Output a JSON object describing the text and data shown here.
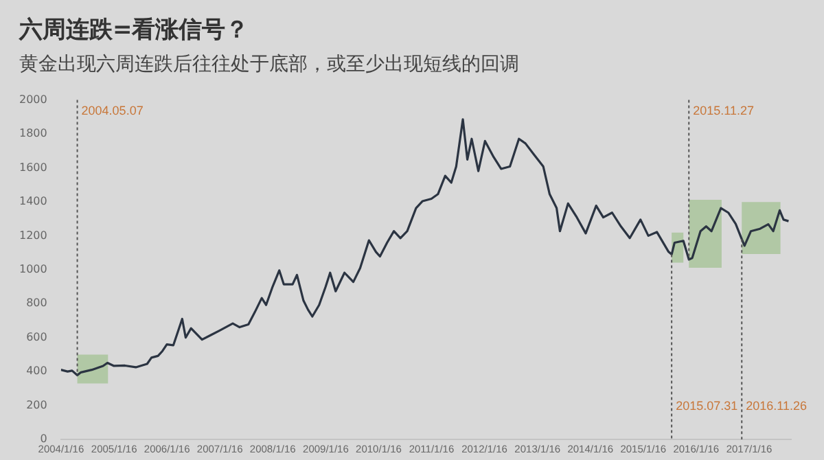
{
  "chart_data": {
    "type": "line",
    "title": "六周连跌=看涨信号？",
    "subtitle": "黄金出现六周连跌后往往处于底部，或至少出现短线的回调",
    "color": "#2b3442",
    "x": [
      "2004-01-15",
      "2004-03-01",
      "2004-04-01",
      "2004-05-07",
      "2004-06-01",
      "2004-08-15",
      "2004-11-01",
      "2004-12-01",
      "2005-01-15",
      "2005-04-01",
      "2005-06-15",
      "2005-09-01",
      "2005-10-01",
      "2005-11-15",
      "2005-12-15",
      "2006-01-15",
      "2006-03-01",
      "2006-05-01",
      "2006-05-25",
      "2006-07-01",
      "2006-09-15",
      "2006-11-15",
      "2007-01-15",
      "2007-04-15",
      "2007-06-01",
      "2007-08-01",
      "2007-09-15",
      "2007-11-01",
      "2007-12-01",
      "2008-01-15",
      "2008-03-01",
      "2008-04-01",
      "2008-06-01",
      "2008-07-01",
      "2008-08-15",
      "2008-09-15",
      "2008-10-15",
      "2008-12-01",
      "2009-01-15",
      "2009-02-15",
      "2009-03-25",
      "2009-05-25",
      "2009-07-25",
      "2009-09-10",
      "2009-11-10",
      "2009-12-28",
      "2010-01-25",
      "2010-03-15",
      "2010-05-01",
      "2010-06-15",
      "2010-08-01",
      "2010-10-01",
      "2010-11-15",
      "2011-01-15",
      "2011-03-01",
      "2011-04-20",
      "2011-06-01",
      "2011-07-05",
      "2011-08-20",
      "2011-09-20",
      "2011-10-20",
      "2011-12-05",
      "2012-01-20",
      "2012-03-20",
      "2012-05-10",
      "2012-07-10",
      "2012-09-10",
      "2012-10-25",
      "2012-12-25",
      "2013-02-25",
      "2013-04-10",
      "2013-05-28",
      "2013-06-20",
      "2013-08-15",
      "2013-10-15",
      "2013-12-15",
      "2014-02-25",
      "2014-04-15",
      "2014-06-15",
      "2014-08-15",
      "2014-10-15",
      "2014-12-28",
      "2015-02-20",
      "2015-04-20",
      "2015-07-10",
      "2015-07-31",
      "2015-08-20",
      "2015-10-20",
      "2015-11-27",
      "2015-12-20",
      "2016-02-15",
      "2016-03-25",
      "2016-05-01",
      "2016-07-05",
      "2016-08-25",
      "2016-10-15",
      "2016-11-26",
      "2016-12-15",
      "2017-01-28",
      "2017-04-01",
      "2017-05-28",
      "2017-07-01",
      "2017-08-15",
      "2017-09-10",
      "2017-10-15"
    ],
    "values": [
      410,
      400,
      405,
      378,
      395,
      410,
      433,
      451,
      433,
      435,
      425,
      445,
      482,
      492,
      520,
      560,
      555,
      710,
      600,
      655,
      588,
      615,
      642,
      683,
      661,
      678,
      751,
      833,
      792,
      900,
      996,
      914,
      914,
      969,
      818,
      765,
      724,
      792,
      900,
      982,
      873,
      982,
      928,
      1009,
      1173,
      1105,
      1078,
      1159,
      1227,
      1186,
      1227,
      1363,
      1404,
      1418,
      1445,
      1553,
      1513,
      1608,
      1886,
      1649,
      1771,
      1581,
      1758,
      1663,
      1594,
      1608,
      1771,
      1744,
      1676,
      1608,
      1445,
      1363,
      1227,
      1390,
      1308,
      1214,
      1377,
      1308,
      1336,
      1255,
      1186,
      1295,
      1200,
      1222,
      1105,
      1090,
      1159,
      1170,
      1060,
      1069,
      1227,
      1255,
      1227,
      1363,
      1336,
      1270,
      1180,
      1141,
      1227,
      1241,
      1268,
      1227,
      1350,
      1295,
      1286
    ],
    "xlim": [
      "2004-01-15",
      "2017-11-01"
    ],
    "xticks": [
      {
        "value": "2004-01-16",
        "label": "2004/1/16"
      },
      {
        "value": "2005-01-16",
        "label": "2005/1/16"
      },
      {
        "value": "2006-01-16",
        "label": "2006/1/16"
      },
      {
        "value": "2007-01-16",
        "label": "2007/1/16"
      },
      {
        "value": "2008-01-16",
        "label": "2008/1/16"
      },
      {
        "value": "2009-01-16",
        "label": "2009/1/16"
      },
      {
        "value": "2010-01-16",
        "label": "2010/1/16"
      },
      {
        "value": "2011-01-16",
        "label": "2011/1/16"
      },
      {
        "value": "2012-01-16",
        "label": "2012/1/16"
      },
      {
        "value": "2013-01-16",
        "label": "2013/1/16"
      },
      {
        "value": "2014-01-16",
        "label": "2014/1/16"
      },
      {
        "value": "2015-01-16",
        "label": "2015/1/16"
      },
      {
        "value": "2016-01-16",
        "label": "2016/1/16"
      },
      {
        "value": "2017-01-16",
        "label": "2017/1/16"
      }
    ],
    "ylim": [
      0,
      2000
    ],
    "yticks": [
      0,
      200,
      400,
      600,
      800,
      1000,
      1200,
      1400,
      1600,
      1800,
      2000
    ],
    "ref_lines": [
      {
        "axis": "x",
        "value": "2004-05-07",
        "label": "2004.05.07",
        "color": "#555555",
        "line_style": "dotted"
      },
      {
        "axis": "x",
        "value": "2015-11-27",
        "label": "2015.11.27",
        "color": "#555555",
        "line_style": "dotted"
      },
      {
        "axis": "x",
        "value": "2015-07-31",
        "label": "2015.07.31",
        "color": "#555555",
        "line_style": "dotted"
      },
      {
        "axis": "x",
        "value": "2016-11-26",
        "label": "2016.11.26",
        "color": "#555555",
        "line_style": "dotted"
      }
    ],
    "bands": [
      {
        "axis": "x",
        "from": "2004-05-07",
        "to": "2004-12-05",
        "color": "#9fc08e"
      },
      {
        "axis": "x",
        "from": "2015-07-31",
        "to": "2015-10-20",
        "color": "#9fc08e"
      },
      {
        "axis": "x",
        "from": "2015-11-27",
        "to": "2016-07-10",
        "color": "#9fc08e"
      },
      {
        "axis": "x",
        "from": "2016-11-26",
        "to": "2017-08-20",
        "color": "#9fc08e"
      }
    ]
  }
}
